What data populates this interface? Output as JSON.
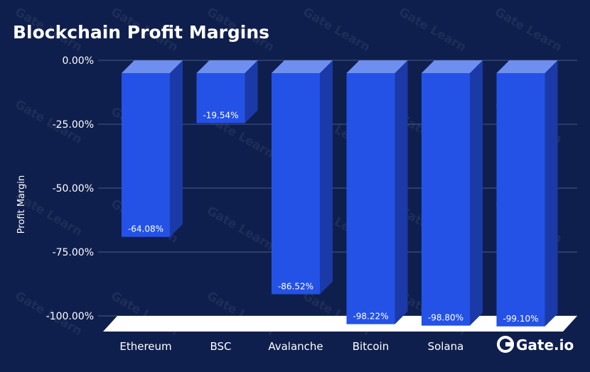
{
  "chart_data": {
    "type": "bar",
    "title": "Blockchain Profit Margins",
    "ylabel": "Profit Margin",
    "xlabel": "",
    "categories": [
      "Ethereum",
      "BSC",
      "Avalanche",
      "Bitcoin",
      "Solana",
      ""
    ],
    "values": [
      -64.08,
      -19.54,
      -86.52,
      -98.22,
      -98.8,
      -99.1
    ],
    "data_labels": [
      "-64.08%",
      "-19.54%",
      "-86.52%",
      "-98.22%",
      "-98.80%",
      "-99.10%"
    ],
    "y_ticks": [
      "0.00%",
      "-25.00%",
      "-50.00%",
      "-75.00%",
      "-100.00%"
    ],
    "ylim": [
      -100,
      0
    ],
    "grid": true,
    "legend": "none",
    "colors": {
      "background": "#0f1f4d",
      "bar_front": "#2452e6",
      "bar_side": "#1b3aa8",
      "bar_top": "#6f8ff0",
      "grid": "#4a5a86",
      "floor": "#ffffff"
    }
  },
  "watermark": "Gate Learn",
  "brand": {
    "logo_text": "Gate.io"
  }
}
